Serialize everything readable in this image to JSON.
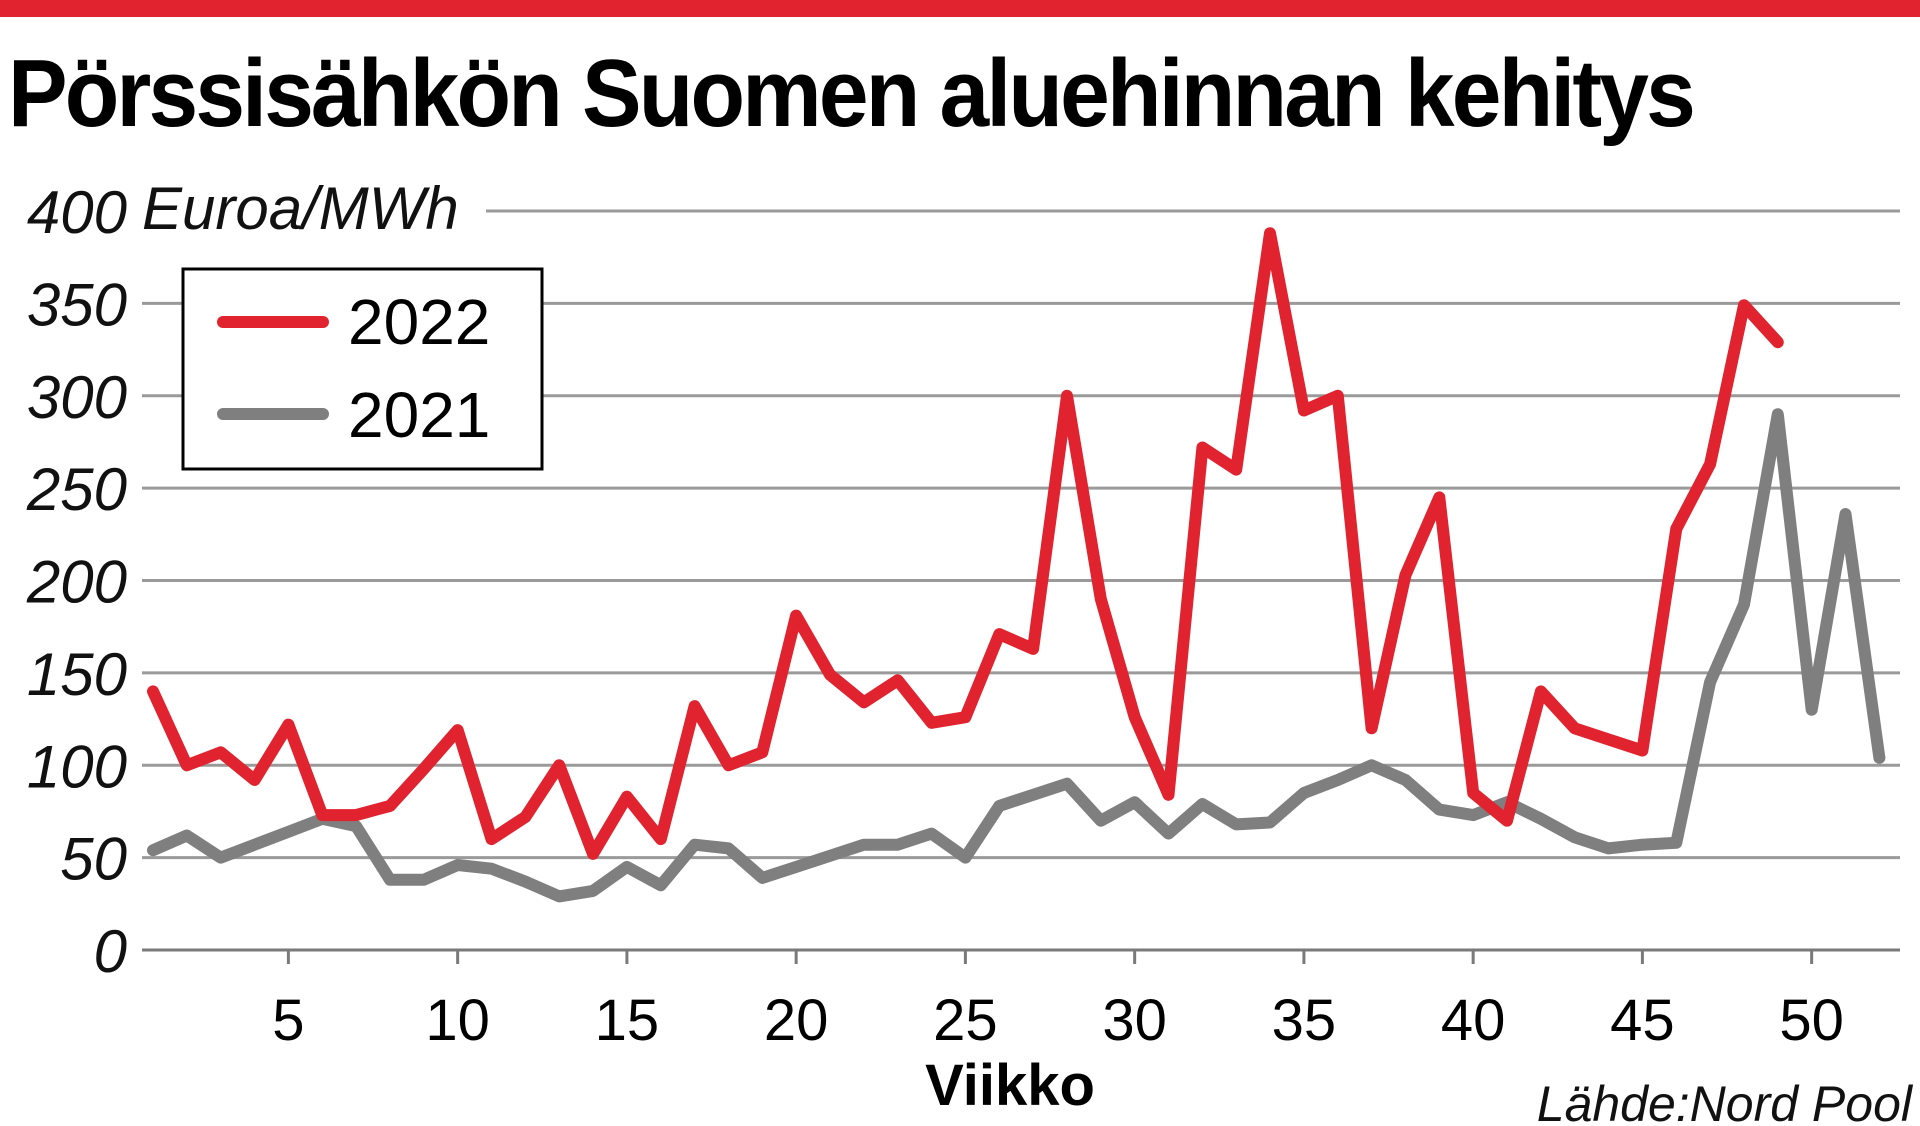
{
  "title": "Pörssisähkön Suomen aluehinnan kehitys",
  "source": "Lähde:Nord Pool",
  "colors": {
    "accent": "#e0232e",
    "series_2022": "#e0232e",
    "series_2021": "#7f7f7f",
    "grid": "#9a9a9a"
  },
  "chart_data": {
    "type": "line",
    "title": "Pörssisähkön Suomen aluehinnan kehitys",
    "xlabel": "Viikko",
    "ylabel": "Euroa/MWh",
    "ylim": [
      0,
      400
    ],
    "xlim": [
      1,
      52
    ],
    "yticks": [
      "0",
      "50",
      "100",
      "150",
      "200",
      "250",
      "300",
      "350",
      "400"
    ],
    "xticks": [
      "5",
      "10",
      "15",
      "20",
      "25",
      "30",
      "35",
      "40",
      "45",
      "50"
    ],
    "grid": true,
    "legend_position": "top-left",
    "series": [
      {
        "name": "2022",
        "color": "#e0232e",
        "x": [
          1,
          2,
          3,
          4,
          5,
          6,
          7,
          8,
          9,
          10,
          11,
          12,
          13,
          14,
          15,
          16,
          17,
          18,
          19,
          20,
          21,
          22,
          23,
          24,
          25,
          26,
          27,
          28,
          29,
          30,
          31,
          32,
          33,
          34,
          35,
          36,
          37,
          38,
          39,
          40,
          41,
          42,
          43,
          44,
          45,
          46,
          47,
          48,
          49
        ],
        "values": [
          140,
          100,
          107,
          92,
          122,
          73,
          73,
          78,
          98,
          119,
          60,
          72,
          100,
          52,
          83,
          60,
          132,
          100,
          107,
          181,
          149,
          134,
          146,
          123,
          126,
          171,
          163,
          300,
          190,
          126,
          84,
          272,
          260,
          388,
          292,
          300,
          120,
          203,
          245,
          85,
          70,
          140,
          120,
          114,
          108,
          228,
          263,
          349,
          329
        ]
      },
      {
        "name": "2021",
        "color": "#7f7f7f",
        "x": [
          1,
          2,
          3,
          4,
          5,
          6,
          7,
          8,
          9,
          10,
          11,
          12,
          13,
          14,
          15,
          16,
          17,
          18,
          19,
          20,
          21,
          22,
          23,
          24,
          25,
          26,
          27,
          28,
          29,
          30,
          31,
          32,
          33,
          34,
          35,
          36,
          37,
          38,
          39,
          40,
          41,
          42,
          43,
          44,
          45,
          46,
          47,
          48,
          49,
          50,
          51,
          52
        ],
        "values": [
          54,
          62,
          50,
          57,
          64,
          71,
          67,
          38,
          38,
          46,
          44,
          37,
          29,
          32,
          45,
          35,
          57,
          55,
          39,
          45,
          51,
          57,
          57,
          63,
          50,
          78,
          84,
          90,
          70,
          80,
          63,
          79,
          68,
          69,
          85,
          92,
          100,
          92,
          76,
          73,
          80,
          71,
          61,
          55,
          57,
          58,
          145,
          187,
          290,
          130,
          236,
          104
        ]
      }
    ]
  }
}
